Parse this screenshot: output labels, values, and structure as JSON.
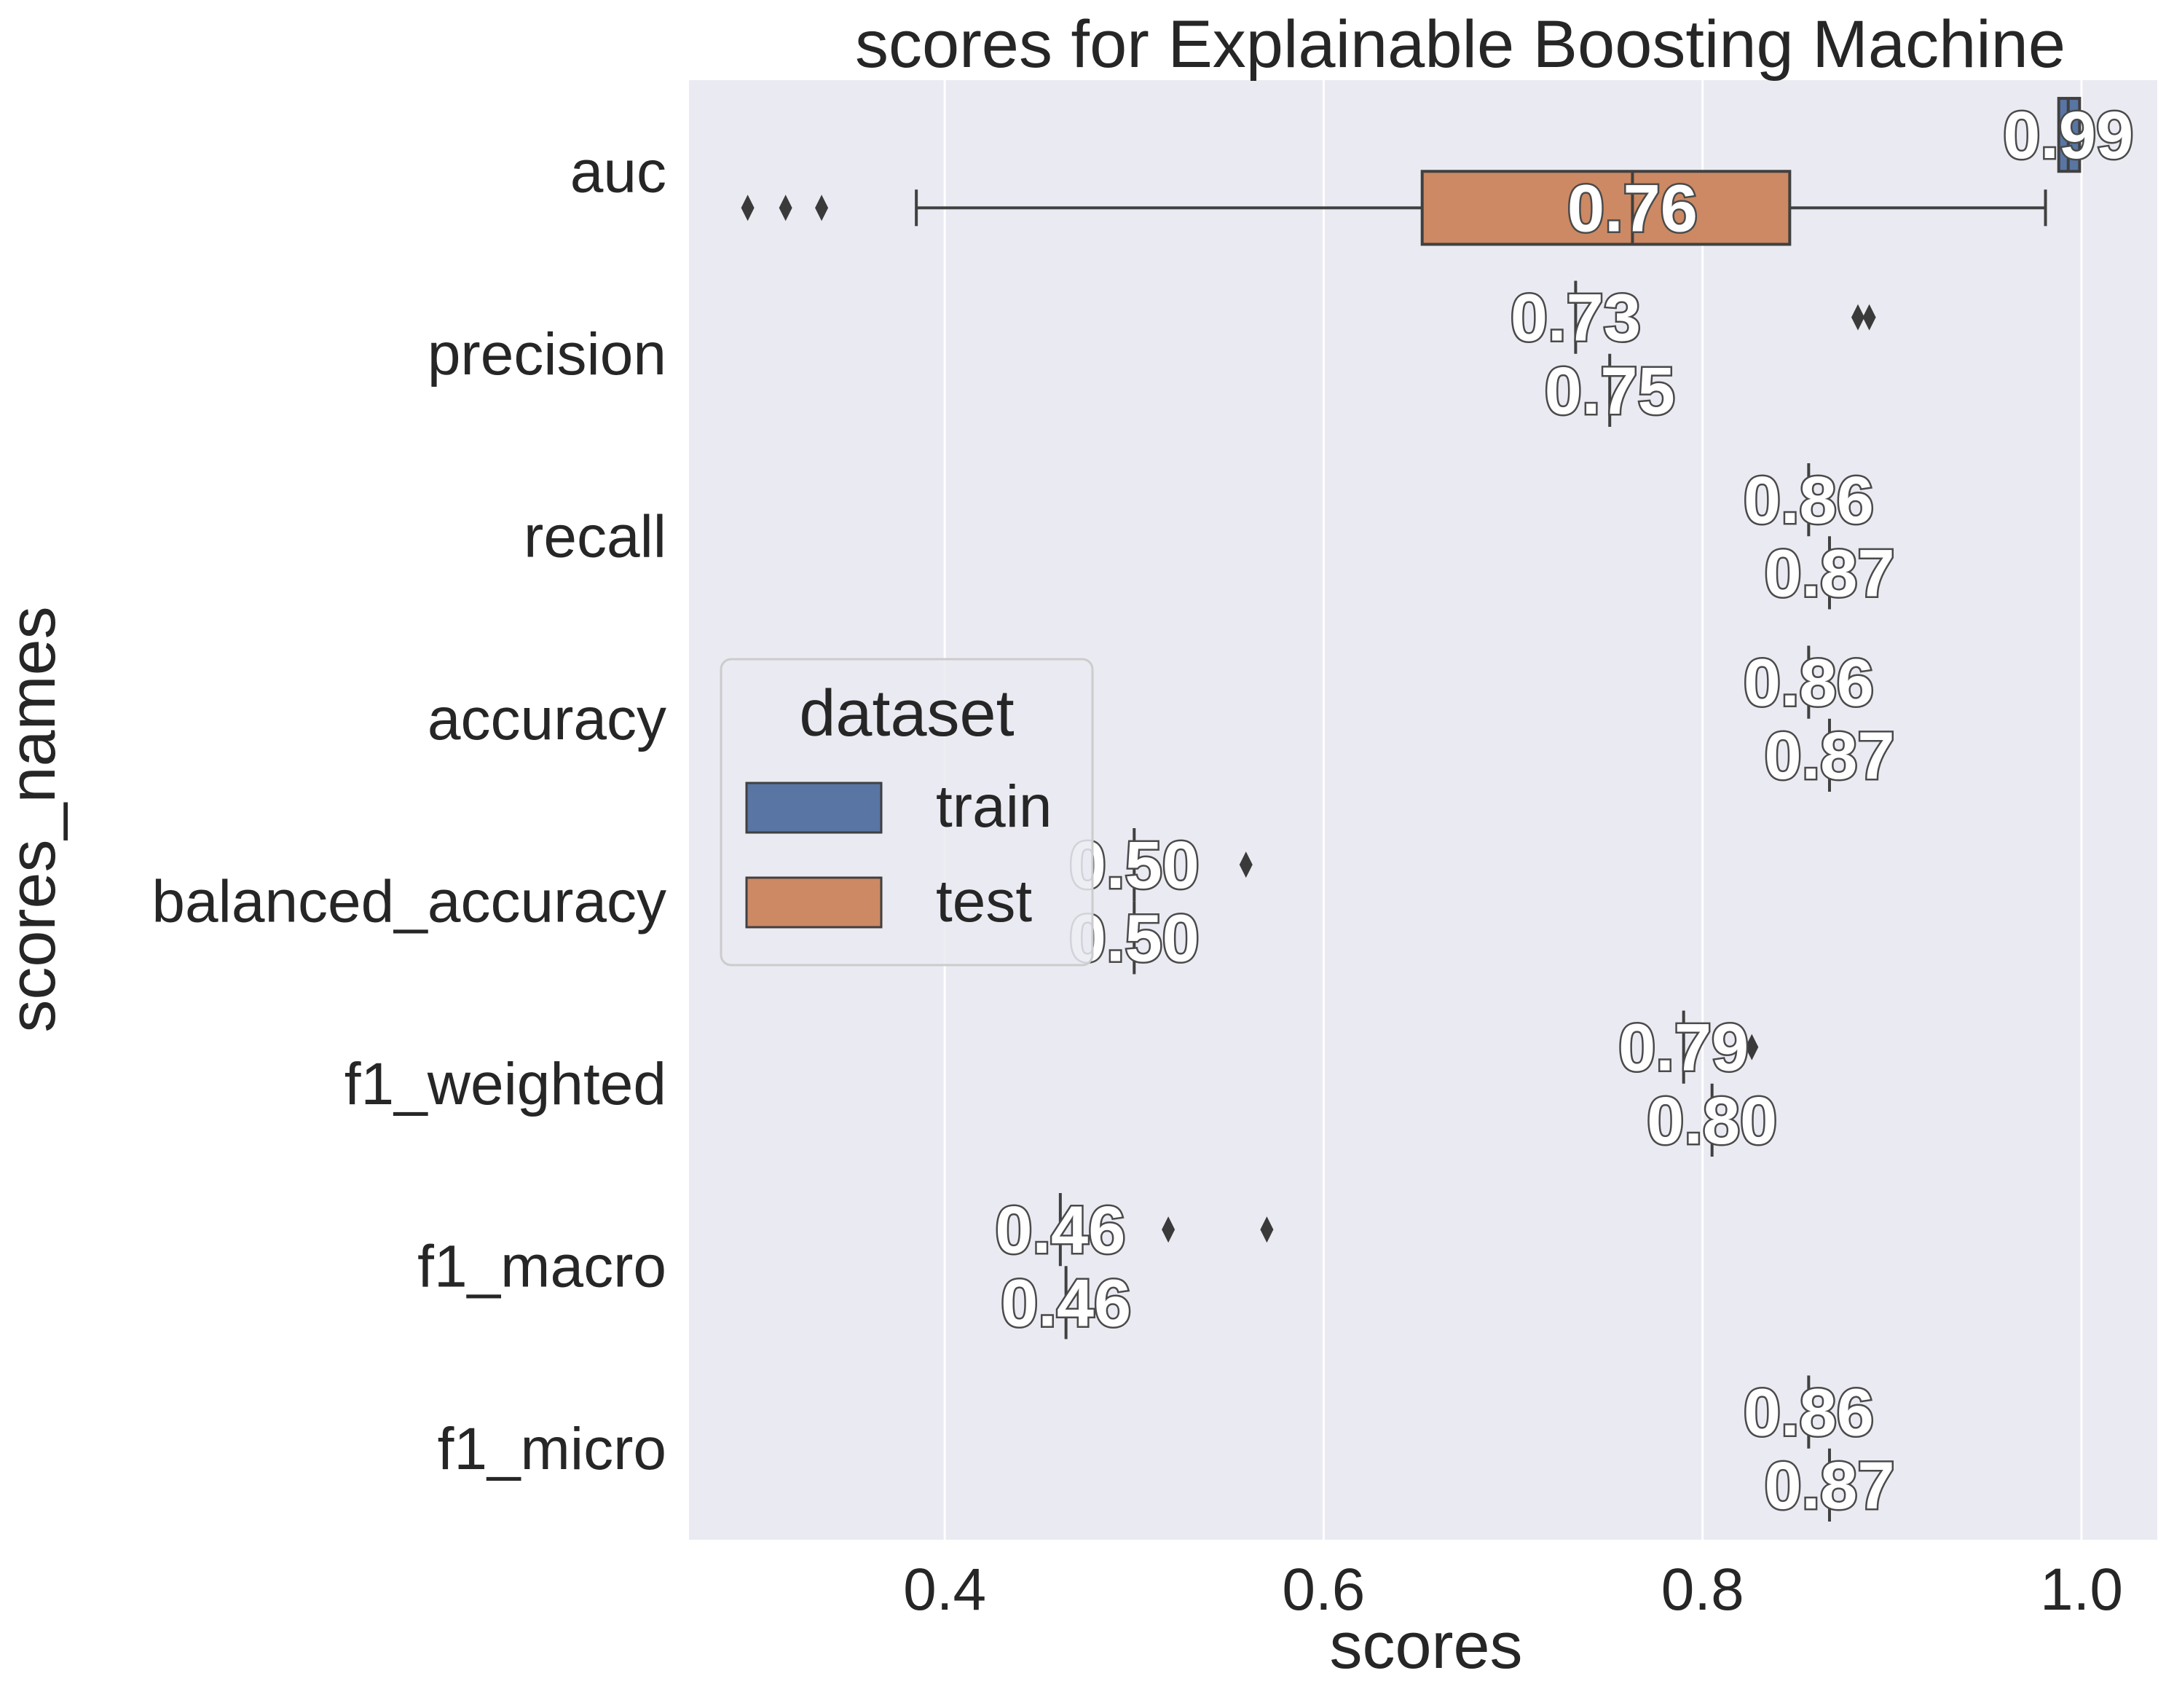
{
  "chart_data": {
    "type": "box",
    "orientation": "horizontal",
    "title": "scores for Explainable Boosting Machine",
    "xlabel": "scores",
    "ylabel": "scores_names",
    "xlim": [
      0.265,
      1.04
    ],
    "xticks": [
      "0.4",
      "0.6",
      "0.8",
      "1.0"
    ],
    "xtick_values": [
      0.4,
      0.6,
      0.8,
      1.0
    ],
    "grid": true,
    "categories": [
      "auc",
      "precision",
      "recall",
      "accuracy",
      "balanced_accuracy",
      "f1_weighted",
      "f1_macro",
      "f1_micro"
    ],
    "legend": {
      "title": "dataset",
      "placement": "center-left",
      "entries": [
        {
          "name": "train",
          "color": "#5875a4"
        },
        {
          "name": "test",
          "color": "#cc8963"
        }
      ]
    },
    "series": [
      {
        "name": "train",
        "color": "#5875a4",
        "boxes": [
          {
            "category": "auc",
            "q1": 0.988,
            "median": 0.993,
            "q3": 0.999,
            "whisker_low": 0.988,
            "whisker_high": 0.999,
            "outliers": [],
            "label": "0.99"
          },
          {
            "category": "precision",
            "q1": 0.733,
            "median": 0.733,
            "q3": 0.733,
            "whisker_low": 0.733,
            "whisker_high": 0.733,
            "outliers": [
              0.882,
              0.888
            ],
            "label": "0.73"
          },
          {
            "category": "recall",
            "q1": 0.856,
            "median": 0.856,
            "q3": 0.856,
            "whisker_low": 0.856,
            "whisker_high": 0.856,
            "outliers": [],
            "label": "0.86"
          },
          {
            "category": "accuracy",
            "q1": 0.856,
            "median": 0.856,
            "q3": 0.856,
            "whisker_low": 0.856,
            "whisker_high": 0.856,
            "outliers": [],
            "label": "0.86"
          },
          {
            "category": "balanced_accuracy",
            "q1": 0.5,
            "median": 0.5,
            "q3": 0.5,
            "whisker_low": 0.5,
            "whisker_high": 0.5,
            "outliers": [
              0.559
            ],
            "label": "0.50"
          },
          {
            "category": "f1_weighted",
            "q1": 0.79,
            "median": 0.79,
            "q3": 0.79,
            "whisker_low": 0.79,
            "whisker_high": 0.79,
            "outliers": [
              0.826
            ],
            "label": "0.79"
          },
          {
            "category": "f1_macro",
            "q1": 0.461,
            "median": 0.461,
            "q3": 0.461,
            "whisker_low": 0.461,
            "whisker_high": 0.461,
            "outliers": [
              0.518,
              0.57
            ],
            "label": "0.46"
          },
          {
            "category": "f1_micro",
            "q1": 0.856,
            "median": 0.856,
            "q3": 0.856,
            "whisker_low": 0.856,
            "whisker_high": 0.856,
            "outliers": [],
            "label": "0.86"
          }
        ]
      },
      {
        "name": "test",
        "color": "#cc8963",
        "boxes": [
          {
            "category": "auc",
            "q1": 0.652,
            "median": 0.763,
            "q3": 0.846,
            "whisker_low": 0.385,
            "whisker_high": 0.981,
            "outliers": [
              0.296,
              0.316,
              0.335
            ],
            "label": "0.76"
          },
          {
            "category": "precision",
            "q1": 0.751,
            "median": 0.751,
            "q3": 0.751,
            "whisker_low": 0.751,
            "whisker_high": 0.751,
            "outliers": [],
            "label": "0.75"
          },
          {
            "category": "recall",
            "q1": 0.867,
            "median": 0.867,
            "q3": 0.867,
            "whisker_low": 0.867,
            "whisker_high": 0.867,
            "outliers": [],
            "label": "0.87"
          },
          {
            "category": "accuracy",
            "q1": 0.867,
            "median": 0.867,
            "q3": 0.867,
            "whisker_low": 0.867,
            "whisker_high": 0.867,
            "outliers": [],
            "label": "0.87"
          },
          {
            "category": "balanced_accuracy",
            "q1": 0.5,
            "median": 0.5,
            "q3": 0.5,
            "whisker_low": 0.5,
            "whisker_high": 0.5,
            "outliers": [],
            "label": "0.50"
          },
          {
            "category": "f1_weighted",
            "q1": 0.805,
            "median": 0.805,
            "q3": 0.805,
            "whisker_low": 0.805,
            "whisker_high": 0.805,
            "outliers": [],
            "label": "0.80"
          },
          {
            "category": "f1_macro",
            "q1": 0.464,
            "median": 0.464,
            "q3": 0.464,
            "whisker_low": 0.464,
            "whisker_high": 0.464,
            "outliers": [],
            "label": "0.46"
          },
          {
            "category": "f1_micro",
            "q1": 0.867,
            "median": 0.867,
            "q3": 0.867,
            "whisker_low": 0.867,
            "whisker_high": 0.867,
            "outliers": [],
            "label": "0.87"
          }
        ]
      }
    ]
  },
  "colors": {
    "plot_background": "#eaeaf2",
    "grid": "#ffffff",
    "box_edge": "#404040",
    "text": "#262626"
  }
}
